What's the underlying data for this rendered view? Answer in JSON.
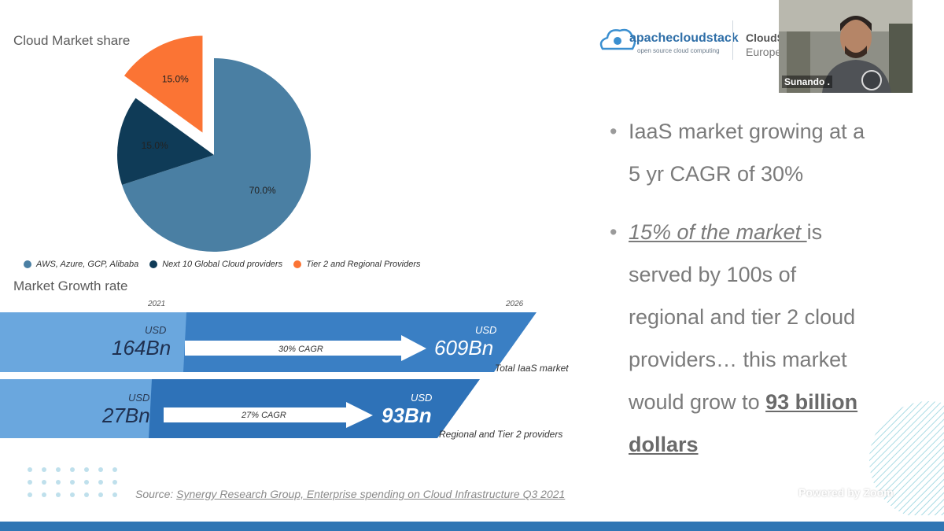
{
  "slide": {
    "pie_title": "Cloud Market share",
    "growth_title": "Market Growth rate",
    "legend": [
      {
        "label": "AWS, Azure, GCP, Alibaba",
        "color": "#4a7fa3"
      },
      {
        "label": "Next 10 Global Cloud providers",
        "color": "#0f3b57"
      },
      {
        "label": "Tier 2 and Regional Providers",
        "color": "#fb7434"
      }
    ],
    "growth": {
      "year_start": "2021",
      "year_end": "2026",
      "row1": {
        "usd_left": "USD",
        "value_left": "164Bn",
        "cagr": "30% CAGR",
        "usd_right": "USD",
        "value_right": "609Bn",
        "caption": "Total IaaS market"
      },
      "row2": {
        "usd_left": "USD",
        "value_left": "27Bn",
        "cagr": "27% CAGR",
        "usd_right": "USD",
        "value_right": "93Bn",
        "caption": "Regional and Tier 2 providers"
      }
    },
    "bullets": {
      "b1": "IaaS market growing at a 5 yr CAGR of 30%",
      "b2_link": "15% of the market ",
      "b2_text": "is served by 100s of regional and tier 2 cloud providers… this market would grow to ",
      "b2_strong": "93 billion dollars"
    },
    "source_label": "Source: ",
    "source_link": "Synergy Research Group, Enterprise spending on Cloud Infrastructure Q3 2021",
    "logo_text": "apachecloudstack",
    "logo_sub": "open source cloud computing",
    "conf_name": "CloudS",
    "conf_sub": "Europe"
  },
  "chart_data": {
    "type": "pie",
    "title": "Cloud Market share",
    "labels": [
      "AWS, Azure, GCP, Alibaba",
      "Next 10 Global Cloud providers",
      "Tier 2 and Regional Providers"
    ],
    "values": [
      70.0,
      15.0,
      15.0
    ],
    "value_labels": [
      "70.0%",
      "15.0%",
      "15.0%"
    ],
    "colors": [
      "#4a7fa3",
      "#0f3b57",
      "#fb7434"
    ],
    "exploded": [
      false,
      false,
      true
    ]
  },
  "zoom": {
    "participant_name": "Sunando .",
    "watermark": "Powered by Zoom"
  }
}
